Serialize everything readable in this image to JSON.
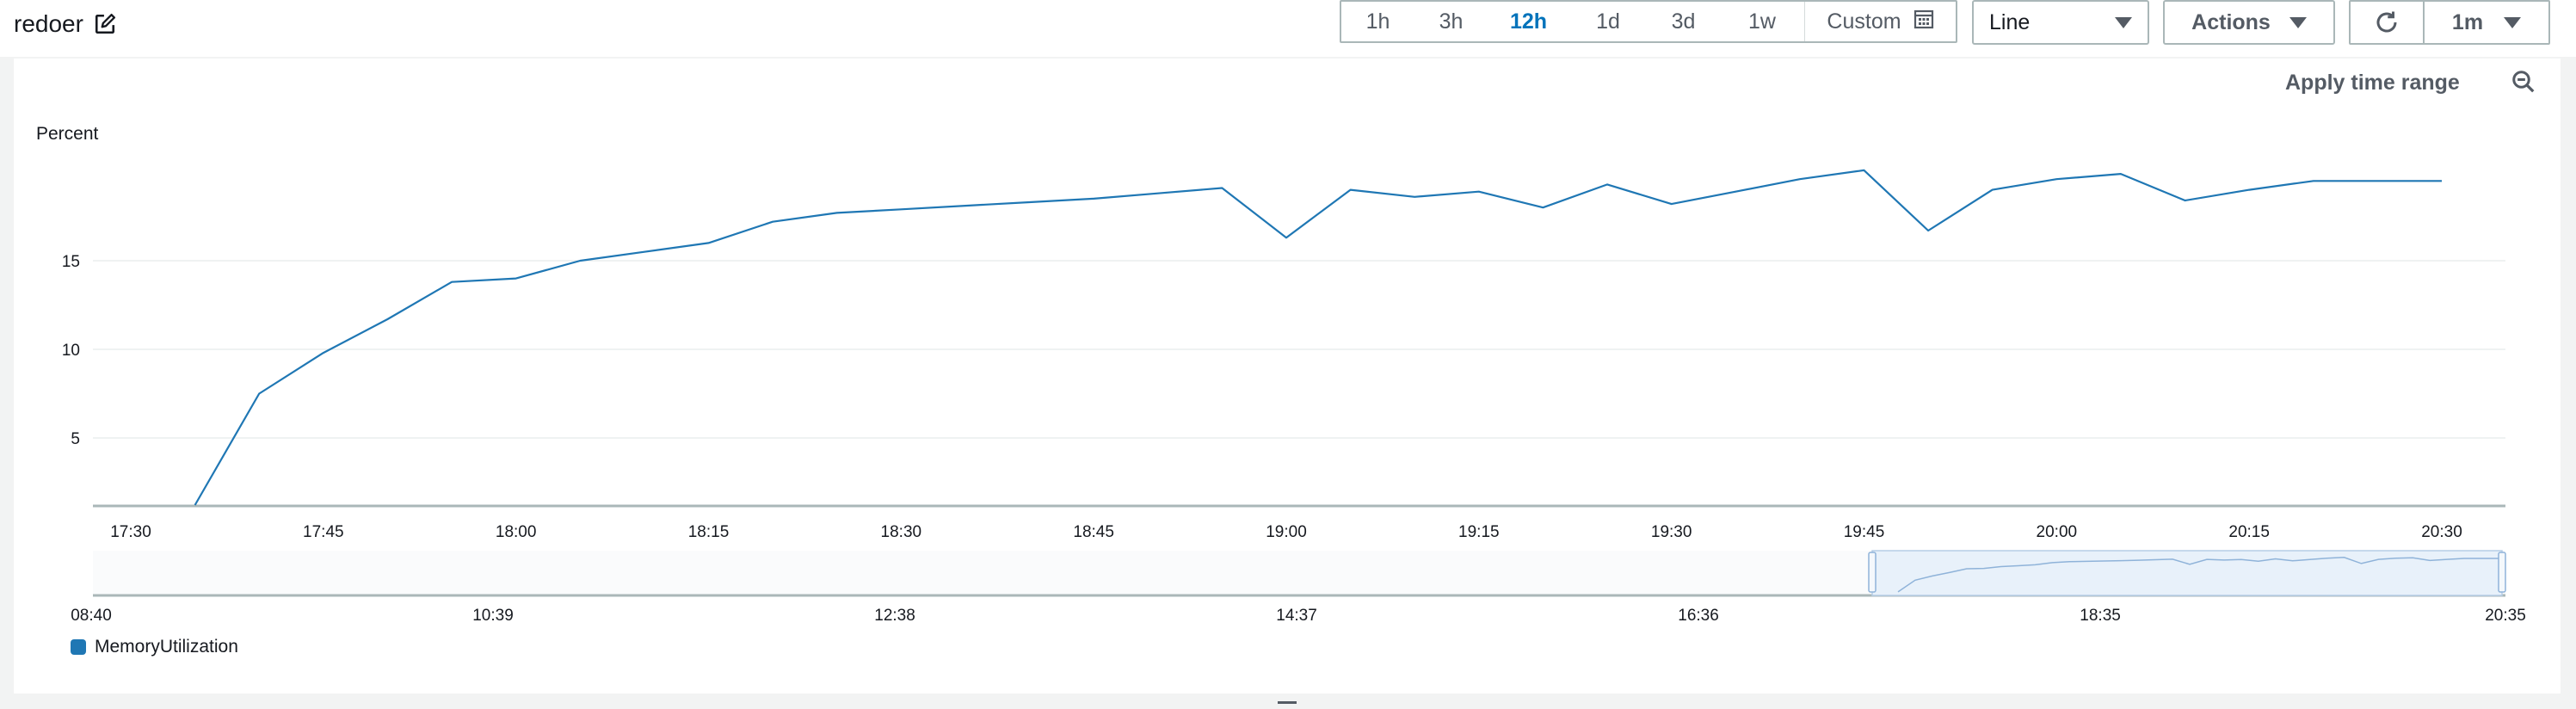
{
  "header": {
    "title": "redoer",
    "time_range": {
      "options": [
        {
          "label": "1h",
          "active": false
        },
        {
          "label": "3h",
          "active": false
        },
        {
          "label": "12h",
          "active": true
        },
        {
          "label": "1d",
          "active": false
        },
        {
          "label": "3d",
          "active": false
        },
        {
          "label": "1w",
          "active": false
        }
      ],
      "custom_label": "Custom"
    },
    "chart_type": "Line",
    "actions_label": "Actions",
    "refresh_interval": "1m"
  },
  "panel": {
    "apply_time_range": "Apply time range"
  },
  "colors": {
    "series": "#1f77b4",
    "active_text": "#0073bb"
  },
  "chart_data": {
    "type": "line",
    "ylabel": "Percent",
    "yticks": [
      5,
      10,
      15
    ],
    "xticks": [
      "17:30",
      "17:45",
      "18:00",
      "18:15",
      "18:30",
      "18:45",
      "19:00",
      "19:15",
      "19:30",
      "19:45",
      "20:00",
      "20:15",
      "20:30"
    ],
    "series": [
      {
        "name": "MemoryUtilization",
        "x": [
          "17:35",
          "17:40",
          "17:45",
          "17:50",
          "17:55",
          "18:00",
          "18:05",
          "18:10",
          "18:15",
          "18:20",
          "18:25",
          "18:30",
          "18:35",
          "18:40",
          "18:45",
          "18:50",
          "18:55",
          "19:00",
          "19:05",
          "19:10",
          "19:15",
          "19:20",
          "19:25",
          "19:30",
          "19:35",
          "19:40",
          "19:45",
          "19:50",
          "19:55",
          "20:00",
          "20:05",
          "20:10",
          "20:15",
          "20:20",
          "20:25",
          "20:30"
        ],
        "values": [
          1,
          7.5,
          9.8,
          11.7,
          13.8,
          14.0,
          15.0,
          15.5,
          16.0,
          17.2,
          17.7,
          17.9,
          18.1,
          18.3,
          18.5,
          18.8,
          19.1,
          16.3,
          19.0,
          18.6,
          18.9,
          18.0,
          19.3,
          18.2,
          18.9,
          19.6,
          20.1,
          16.7,
          19.0,
          19.6,
          19.9,
          18.4,
          19.0,
          19.5,
          19.5,
          19.5
        ]
      }
    ],
    "overview": {
      "xticks": [
        "08:40",
        "10:39",
        "12:38",
        "14:37",
        "16:36",
        "18:35",
        "20:35"
      ]
    }
  }
}
